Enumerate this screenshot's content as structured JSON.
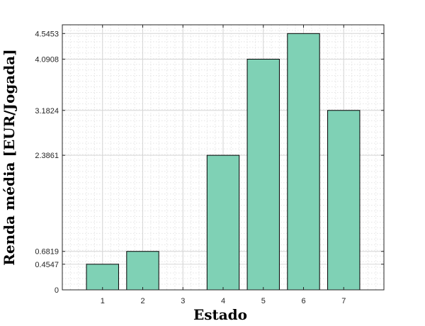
{
  "chart_data": {
    "type": "bar",
    "categories": [
      "1",
      "2",
      "3",
      "4",
      "5",
      "6",
      "7"
    ],
    "values": [
      0.4547,
      0.6819,
      0,
      2.3861,
      4.0908,
      4.5453,
      3.1824
    ],
    "xlabel": "Estado",
    "ylabel": "Renda média [EUR/Jogada]",
    "yticks": [
      "0",
      "0.4547",
      "0.6819",
      "2.3861",
      "3.1824",
      "4.0908",
      "4.5453"
    ],
    "ytick_values": [
      0,
      0.4547,
      0.6819,
      2.3861,
      3.1824,
      4.0908,
      4.5453
    ],
    "xlim": [
      0,
      8
    ],
    "ylim": [
      0,
      4.7
    ],
    "grid": "on",
    "legend": "none",
    "colors": {
      "bar_fill": "#7fd1b5",
      "bar_edge": "#000000",
      "axes": "#262626",
      "grid": "#d6d6d6"
    }
  }
}
